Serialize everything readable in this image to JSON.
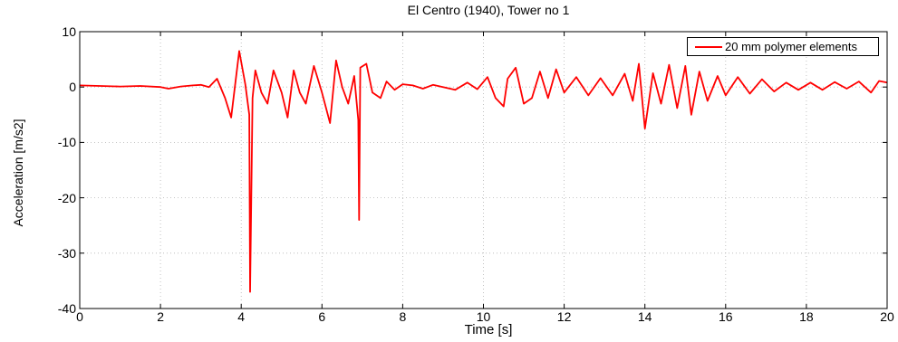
{
  "chart_data": {
    "type": "line",
    "title": "El Centro (1940), Tower no 1",
    "xlabel": "Time [s]",
    "ylabel": "Acceleration [m/s2]",
    "xlim": [
      0,
      20
    ],
    "ylim": [
      -40,
      10
    ],
    "xticks": [
      0,
      2,
      4,
      6,
      8,
      10,
      12,
      14,
      16,
      18,
      20
    ],
    "yticks": [
      10,
      0,
      -10,
      -20,
      -30,
      -40
    ],
    "grid": true,
    "legend_position": "top-right",
    "series": [
      {
        "name": "20 mm polymer elements",
        "color": "#ff0000",
        "x": [
          0,
          0.5,
          1.0,
          1.5,
          2.0,
          2.2,
          2.5,
          2.8,
          3.0,
          3.2,
          3.4,
          3.6,
          3.75,
          3.95,
          4.1,
          4.2,
          4.22,
          4.28,
          4.35,
          4.5,
          4.65,
          4.8,
          5.0,
          5.15,
          5.3,
          5.45,
          5.6,
          5.8,
          6.0,
          6.2,
          6.35,
          6.5,
          6.65,
          6.8,
          6.9,
          6.92,
          6.95,
          7.1,
          7.25,
          7.45,
          7.6,
          7.8,
          8.0,
          8.25,
          8.5,
          8.75,
          9.0,
          9.3,
          9.6,
          9.85,
          10.1,
          10.3,
          10.5,
          10.6,
          10.8,
          11.0,
          11.2,
          11.4,
          11.6,
          11.8,
          12.0,
          12.3,
          12.6,
          12.9,
          13.2,
          13.5,
          13.7,
          13.85,
          14.0,
          14.2,
          14.4,
          14.6,
          14.8,
          15.0,
          15.15,
          15.35,
          15.55,
          15.8,
          16.0,
          16.3,
          16.6,
          16.9,
          17.2,
          17.5,
          17.8,
          18.1,
          18.4,
          18.7,
          19.0,
          19.3,
          19.6,
          19.8,
          20.0
        ],
        "y": [
          0.3,
          0.2,
          0.1,
          0.2,
          0.0,
          -0.3,
          0.1,
          0.3,
          0.4,
          0.0,
          1.5,
          -2.0,
          -5.5,
          6.5,
          0.5,
          -5.0,
          -37.0,
          -2.0,
          3.0,
          -1.0,
          -3.0,
          3.0,
          -1.0,
          -5.5,
          3.0,
          -1.0,
          -3.0,
          3.8,
          -1.0,
          -6.5,
          4.8,
          0.0,
          -3.0,
          2.0,
          -6.0,
          -24.0,
          3.5,
          4.2,
          -1.0,
          -2.0,
          1.0,
          -0.5,
          0.5,
          0.3,
          -0.3,
          0.4,
          0.0,
          -0.5,
          0.8,
          -0.4,
          1.8,
          -2.0,
          -3.5,
          1.5,
          3.5,
          -3.0,
          -2.0,
          2.8,
          -2.0,
          3.2,
          -1.0,
          1.8,
          -1.5,
          1.6,
          -1.5,
          2.4,
          -2.5,
          4.2,
          -7.5,
          2.5,
          -3.0,
          4.0,
          -3.8,
          3.8,
          -5.0,
          2.8,
          -2.5,
          2.0,
          -1.5,
          1.8,
          -1.2,
          1.4,
          -0.8,
          0.8,
          -0.5,
          0.8,
          -0.5,
          0.9,
          -0.3,
          1.0,
          -1.0,
          1.1,
          0.8
        ]
      }
    ]
  }
}
